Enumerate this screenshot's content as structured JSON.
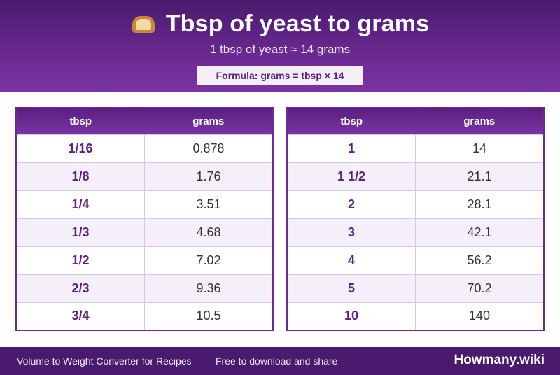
{
  "header": {
    "emoji": "bread-icon",
    "title": "Tbsp of yeast to grams",
    "subtitle": "1 tbsp of yeast ≈ 14 grams",
    "formula": "Formula: grams = tbsp × 14"
  },
  "table_left": {
    "col1": "tbsp",
    "col2": "grams",
    "rows": [
      {
        "tbsp": "1/16",
        "grams": "0.878"
      },
      {
        "tbsp": "1/8",
        "grams": "1.76"
      },
      {
        "tbsp": "1/4",
        "grams": "3.51"
      },
      {
        "tbsp": "1/3",
        "grams": "4.68"
      },
      {
        "tbsp": "1/2",
        "grams": "7.02"
      },
      {
        "tbsp": "2/3",
        "grams": "9.36"
      },
      {
        "tbsp": "3/4",
        "grams": "10.5"
      }
    ]
  },
  "table_right": {
    "col1": "tbsp",
    "col2": "grams",
    "rows": [
      {
        "tbsp": "1",
        "grams": "14"
      },
      {
        "tbsp": "1 1/2",
        "grams": "21.1"
      },
      {
        "tbsp": "2",
        "grams": "28.1"
      },
      {
        "tbsp": "3",
        "grams": "42.1"
      },
      {
        "tbsp": "4",
        "grams": "56.2"
      },
      {
        "tbsp": "5",
        "grams": "70.2"
      },
      {
        "tbsp": "10",
        "grams": "140"
      }
    ]
  },
  "footer": {
    "text1": "Volume to Weight Converter for Recipes",
    "text2": "Free to download and share",
    "brand": "Howmany.wiki"
  },
  "colors": {
    "primary": "#6a2a92",
    "dark": "#4a1a6e",
    "accent_text": "#5a2184"
  }
}
